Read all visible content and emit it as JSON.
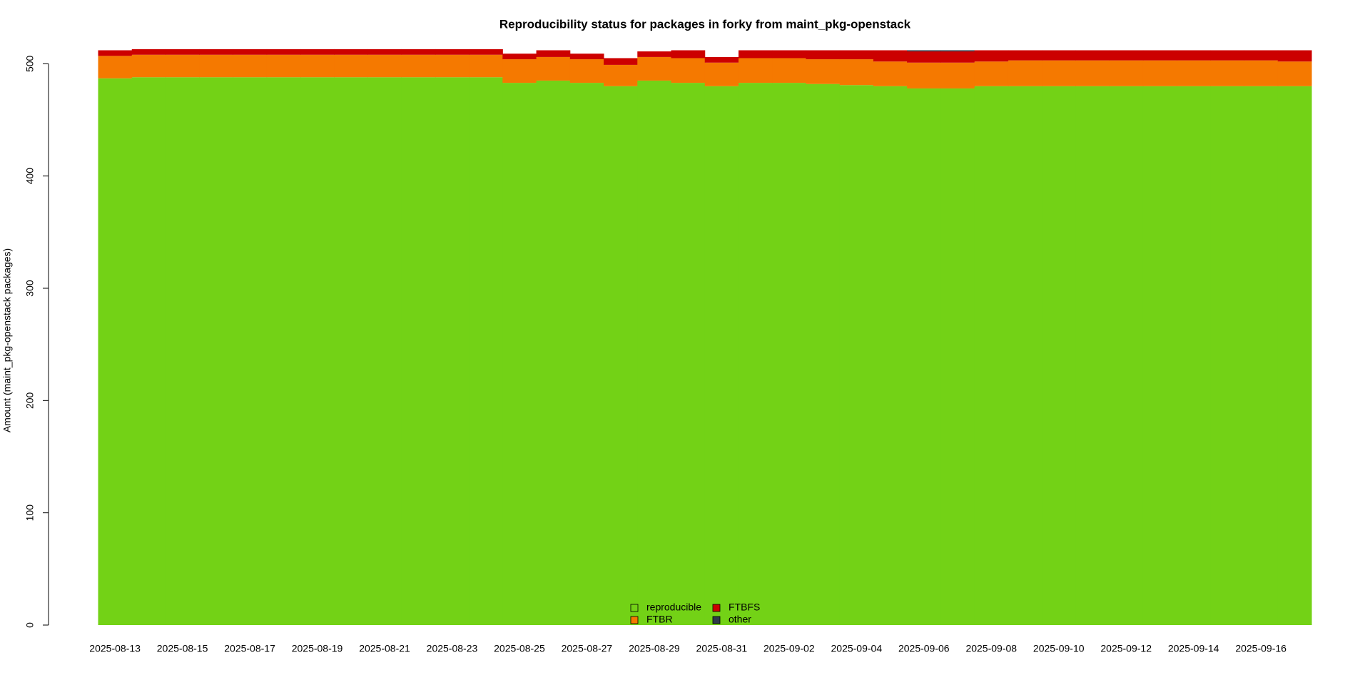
{
  "chart_data": {
    "type": "stacked-step-area",
    "title": "Reproducibility status for packages in forky from maint_pkg-openstack",
    "y_label": "Amount (maint_pkg-openstack packages)",
    "categories": [
      "2025-08-13",
      null,
      "2025-08-15",
      null,
      "2025-08-17",
      null,
      "2025-08-19",
      null,
      "2025-08-21",
      null,
      "2025-08-23",
      null,
      "2025-08-25",
      null,
      "2025-08-27",
      null,
      "2025-08-29",
      null,
      "2025-08-31",
      null,
      "2025-09-02",
      null,
      "2025-09-04",
      null,
      "2025-09-06",
      null,
      "2025-09-08",
      null,
      "2025-09-10",
      null,
      "2025-09-12",
      null,
      "2025-09-14",
      null,
      "2025-09-16",
      null
    ],
    "series": [
      {
        "name": "reproducible",
        "color": "#73d216",
        "values": [
          487,
          488,
          488,
          488,
          488,
          488,
          488,
          488,
          488,
          488,
          488,
          488,
          483,
          485,
          483,
          480,
          485,
          483,
          480,
          483,
          483,
          482,
          481,
          480,
          478,
          478,
          480,
          480,
          480,
          480,
          480,
          480,
          480,
          480,
          480,
          480
        ]
      },
      {
        "name": "FTBR",
        "color": "#f57900",
        "values": [
          20,
          20,
          20,
          20,
          20,
          20,
          20,
          20,
          20,
          20,
          20,
          20,
          21,
          21,
          21,
          19,
          21,
          22,
          21,
          22,
          22,
          22,
          23,
          22,
          23,
          23,
          22,
          23,
          23,
          23,
          23,
          23,
          23,
          23,
          23,
          22
        ]
      },
      {
        "name": "FTBFS",
        "color": "#cc0000",
        "values": [
          5,
          5,
          5,
          5,
          5,
          5,
          5,
          5,
          5,
          5,
          5,
          5,
          5,
          6,
          5,
          6,
          5,
          7,
          5,
          7,
          7,
          8,
          8,
          10,
          10,
          10,
          10,
          9,
          9,
          9,
          9,
          9,
          9,
          9,
          9,
          10
        ]
      },
      {
        "name": "other",
        "color": "#2e3a4a",
        "values": [
          0,
          0,
          0,
          0,
          0,
          0,
          0,
          0,
          0,
          0,
          0,
          0,
          0,
          0,
          0,
          0,
          0,
          0,
          0,
          0,
          0,
          0,
          0,
          0,
          1,
          1,
          0,
          0,
          0,
          0,
          0,
          0,
          0,
          0,
          0,
          0
        ]
      }
    ],
    "ylim": [
      0,
      520
    ],
    "yticks": [
      0,
      100,
      200,
      300,
      400,
      500
    ]
  }
}
